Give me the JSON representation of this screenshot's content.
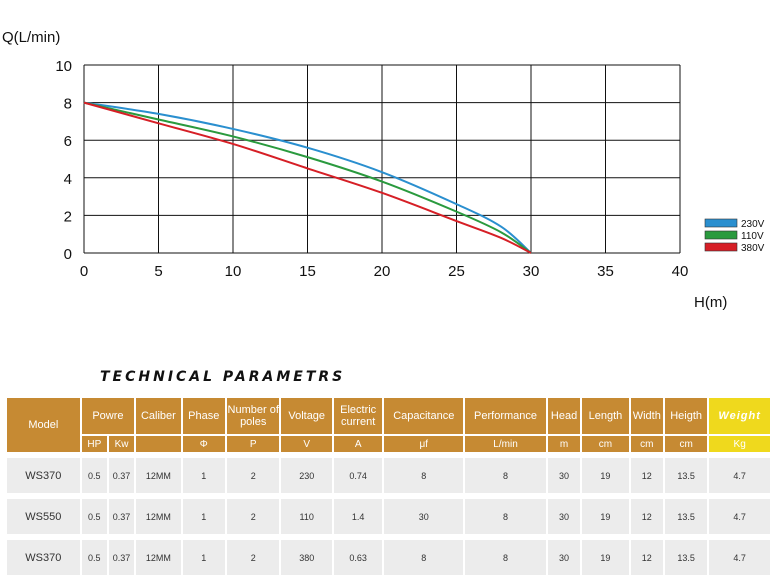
{
  "chart_data": {
    "type": "line",
    "xlabel": "H(m)",
    "ylabel": "Q(L/min)",
    "xlim": [
      0,
      40
    ],
    "ylim": [
      0,
      10
    ],
    "xticks": [
      0,
      5,
      10,
      15,
      20,
      25,
      30,
      35,
      40
    ],
    "yticks": [
      0,
      2,
      4,
      6,
      8,
      10
    ],
    "grid": true,
    "legend_position": "right",
    "series": [
      {
        "name": "230V",
        "color": "#2a8fcf",
        "x": [
          0,
          5,
          10,
          15,
          20,
          25,
          28,
          30
        ],
        "y": [
          8,
          7.4,
          6.6,
          5.6,
          4.3,
          2.6,
          1.4,
          0
        ]
      },
      {
        "name": "110V",
        "color": "#2a9a3e",
        "x": [
          0,
          5,
          10,
          15,
          20,
          25,
          28,
          30
        ],
        "y": [
          8,
          7.1,
          6.2,
          5.1,
          3.8,
          2.2,
          1.1,
          0
        ]
      },
      {
        "name": "380V",
        "color": "#d61f26",
        "x": [
          0,
          5,
          10,
          15,
          20,
          25,
          28,
          30
        ],
        "y": [
          8,
          6.9,
          5.8,
          4.5,
          3.2,
          1.7,
          0.8,
          0
        ]
      }
    ]
  },
  "table": {
    "title": "TECHNICAL PARAMETRS",
    "headers": [
      "Model",
      "Powre",
      "Caliber",
      "Phase",
      "Number of poles",
      "Voltage",
      "Electric current",
      "Capacitance",
      "Performance",
      "Head",
      "Length",
      "Width",
      "Heigth",
      "Weight"
    ],
    "units": [
      "HP",
      "Kw",
      "Φ",
      "P",
      "V",
      "A",
      "μf",
      "L/min",
      "m",
      "cm",
      "cm",
      "cm",
      "Kg"
    ],
    "rows": [
      [
        "WS370",
        "0.5",
        "0.37",
        "12MM",
        "1",
        "2",
        "230",
        "0.74",
        "8",
        "8",
        "30",
        "19",
        "12",
        "13.5",
        "4.7"
      ],
      [
        "WS550",
        "0.5",
        "0.37",
        "12MM",
        "1",
        "2",
        "110",
        "1.4",
        "30",
        "8",
        "30",
        "19",
        "12",
        "13.5",
        "4.7"
      ],
      [
        "WS370",
        "0.5",
        "0.37",
        "12MM",
        "1",
        "2",
        "380",
        "0.63",
        "8",
        "8",
        "30",
        "19",
        "12",
        "13.5",
        "4.7"
      ]
    ]
  }
}
